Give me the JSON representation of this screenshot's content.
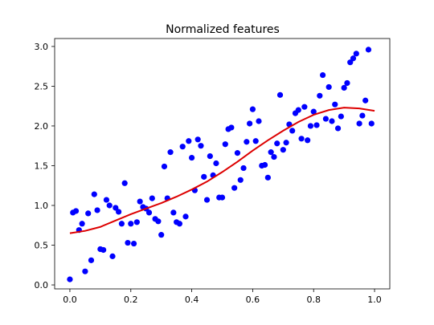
{
  "chart_data": {
    "type": "scatter",
    "title": "Normalized features",
    "xlabel": "",
    "ylabel": "",
    "xlim": [
      -0.05,
      1.05
    ],
    "ylim": [
      -0.05,
      3.1
    ],
    "grid": false,
    "legend": "none",
    "xticks": [
      {
        "value": 0.0,
        "label": "0.0"
      },
      {
        "value": 0.2,
        "label": "0.2"
      },
      {
        "value": 0.4,
        "label": "0.4"
      },
      {
        "value": 0.6,
        "label": "0.6"
      },
      {
        "value": 0.8,
        "label": "0.8"
      },
      {
        "value": 1.0,
        "label": "1.0"
      }
    ],
    "yticks": [
      {
        "value": 0.0,
        "label": "0.0"
      },
      {
        "value": 0.5,
        "label": "0.5"
      },
      {
        "value": 1.0,
        "label": "1.0"
      },
      {
        "value": 1.5,
        "label": "1.5"
      },
      {
        "value": 2.0,
        "label": "2.0"
      },
      {
        "value": 2.5,
        "label": "2.5"
      },
      {
        "value": 3.0,
        "label": "3.0"
      }
    ],
    "series": [
      {
        "kind": "scatter",
        "color": "#0000ff",
        "points": [
          [
            0.0,
            0.07
          ],
          [
            0.01,
            0.91
          ],
          [
            0.02,
            0.93
          ],
          [
            0.03,
            0.69
          ],
          [
            0.04,
            0.77
          ],
          [
            0.05,
            0.17
          ],
          [
            0.06,
            0.9
          ],
          [
            0.07,
            0.31
          ],
          [
            0.08,
            1.14
          ],
          [
            0.09,
            0.94
          ],
          [
            0.1,
            0.45
          ],
          [
            0.11,
            0.44
          ],
          [
            0.12,
            1.07
          ],
          [
            0.13,
            1.0
          ],
          [
            0.14,
            0.36
          ],
          [
            0.15,
            0.97
          ],
          [
            0.16,
            0.92
          ],
          [
            0.17,
            0.77
          ],
          [
            0.18,
            1.28
          ],
          [
            0.19,
            0.53
          ],
          [
            0.2,
            0.77
          ],
          [
            0.21,
            0.52
          ],
          [
            0.22,
            0.79
          ],
          [
            0.23,
            1.05
          ],
          [
            0.24,
            0.98
          ],
          [
            0.25,
            0.96
          ],
          [
            0.26,
            0.91
          ],
          [
            0.27,
            1.09
          ],
          [
            0.28,
            0.83
          ],
          [
            0.29,
            0.8
          ],
          [
            0.3,
            0.63
          ],
          [
            0.31,
            1.49
          ],
          [
            0.32,
            1.09
          ],
          [
            0.33,
            1.67
          ],
          [
            0.34,
            0.91
          ],
          [
            0.35,
            0.79
          ],
          [
            0.36,
            0.77
          ],
          [
            0.37,
            1.74
          ],
          [
            0.38,
            0.86
          ],
          [
            0.39,
            1.81
          ],
          [
            0.4,
            1.6
          ],
          [
            0.41,
            1.19
          ],
          [
            0.42,
            1.83
          ],
          [
            0.43,
            1.75
          ],
          [
            0.44,
            1.36
          ],
          [
            0.45,
            1.07
          ],
          [
            0.46,
            1.62
          ],
          [
            0.47,
            1.38
          ],
          [
            0.48,
            1.53
          ],
          [
            0.49,
            1.1
          ],
          [
            0.5,
            1.1
          ],
          [
            0.51,
            1.77
          ],
          [
            0.52,
            1.96
          ],
          [
            0.53,
            1.98
          ],
          [
            0.54,
            1.22
          ],
          [
            0.55,
            1.66
          ],
          [
            0.56,
            1.32
          ],
          [
            0.57,
            1.47
          ],
          [
            0.58,
            1.8
          ],
          [
            0.59,
            2.03
          ],
          [
            0.6,
            2.21
          ],
          [
            0.61,
            1.81
          ],
          [
            0.62,
            2.06
          ],
          [
            0.63,
            1.5
          ],
          [
            0.64,
            1.51
          ],
          [
            0.65,
            1.35
          ],
          [
            0.66,
            1.67
          ],
          [
            0.67,
            1.61
          ],
          [
            0.68,
            1.78
          ],
          [
            0.69,
            2.39
          ],
          [
            0.7,
            1.7
          ],
          [
            0.71,
            1.79
          ],
          [
            0.72,
            2.02
          ],
          [
            0.73,
            1.94
          ],
          [
            0.74,
            2.16
          ],
          [
            0.75,
            2.2
          ],
          [
            0.76,
            1.84
          ],
          [
            0.77,
            2.24
          ],
          [
            0.78,
            1.82
          ],
          [
            0.79,
            2.0
          ],
          [
            0.8,
            2.18
          ],
          [
            0.81,
            2.01
          ],
          [
            0.82,
            2.38
          ],
          [
            0.83,
            2.64
          ],
          [
            0.84,
            2.09
          ],
          [
            0.85,
            2.49
          ],
          [
            0.86,
            2.06
          ],
          [
            0.87,
            2.27
          ],
          [
            0.88,
            1.97
          ],
          [
            0.89,
            2.12
          ],
          [
            0.9,
            2.48
          ],
          [
            0.91,
            2.54
          ],
          [
            0.92,
            2.8
          ],
          [
            0.93,
            2.85
          ],
          [
            0.94,
            2.91
          ],
          [
            0.95,
            2.03
          ],
          [
            0.96,
            2.13
          ],
          [
            0.97,
            2.32
          ],
          [
            0.98,
            2.96
          ],
          [
            0.99,
            2.03
          ]
        ]
      },
      {
        "kind": "line",
        "color": "#dd0000",
        "points": [
          [
            0.0,
            0.65
          ],
          [
            0.05,
            0.68
          ],
          [
            0.1,
            0.73
          ],
          [
            0.15,
            0.81
          ],
          [
            0.2,
            0.89
          ],
          [
            0.25,
            0.96
          ],
          [
            0.3,
            1.03
          ],
          [
            0.35,
            1.11
          ],
          [
            0.4,
            1.2
          ],
          [
            0.45,
            1.3
          ],
          [
            0.5,
            1.42
          ],
          [
            0.55,
            1.55
          ],
          [
            0.6,
            1.69
          ],
          [
            0.65,
            1.82
          ],
          [
            0.7,
            1.94
          ],
          [
            0.75,
            2.05
          ],
          [
            0.8,
            2.14
          ],
          [
            0.85,
            2.2
          ],
          [
            0.9,
            2.23
          ],
          [
            0.95,
            2.22
          ],
          [
            1.0,
            2.19
          ]
        ]
      }
    ]
  }
}
